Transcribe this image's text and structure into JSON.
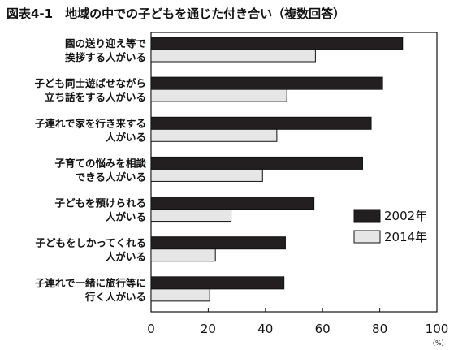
{
  "chart_data": {
    "type": "bar",
    "orientation": "horizontal",
    "title": "図表4-1　地域の中での子どもを通じた付き合い（複数回答）",
    "categories": [
      [
        "園の送り迎え等で",
        "挨拶する人がいる"
      ],
      [
        "子ども同士遊ばせながら",
        "立ち話をする人がいる"
      ],
      [
        "子連れで家を行き来する",
        "人がいる"
      ],
      [
        "子育ての悩みを相談",
        "できる人がいる"
      ],
      [
        "子どもを預けられる",
        "人がいる"
      ],
      [
        "子どもをしかってくれる",
        "人がいる"
      ],
      [
        "子連れで一緒に旅行等に",
        "行く人がいる"
      ]
    ],
    "series": [
      {
        "name": "2002年",
        "color": "#231f20",
        "values": [
          88,
          81,
          77,
          74,
          57,
          47,
          46.5
        ]
      },
      {
        "name": "2014年",
        "color": "#e6e6e6",
        "values": [
          57.5,
          47.5,
          44,
          39,
          28,
          22.5,
          20.5
        ]
      }
    ],
    "xlim": [
      0,
      100
    ],
    "xticks": [
      0,
      20,
      40,
      60,
      80,
      100
    ],
    "xunit": "（%）",
    "legend_position": "right",
    "grid": false
  }
}
